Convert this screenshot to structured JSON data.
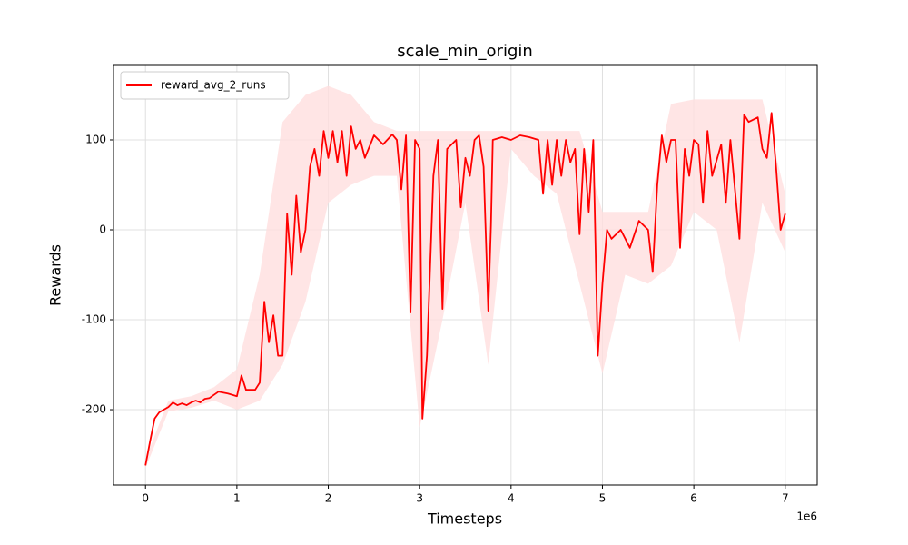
{
  "chart_data": {
    "type": "line",
    "title": "scale_min_origin",
    "x_label": "Timesteps",
    "y_label": "Rewards",
    "x_offset_label": "1e6",
    "x": [
      0,
      0.05,
      0.1,
      0.15,
      0.2,
      0.25,
      0.3,
      0.35,
      0.4,
      0.45,
      0.5,
      0.55,
      0.6,
      0.65,
      0.7,
      0.8,
      0.9,
      1.0,
      1.05,
      1.1,
      1.2,
      1.25,
      1.3,
      1.35,
      1.4,
      1.45,
      1.5,
      1.55,
      1.6,
      1.65,
      1.7,
      1.75,
      1.8,
      1.85,
      1.9,
      1.95,
      2.0,
      2.05,
      2.1,
      2.15,
      2.2,
      2.25,
      2.3,
      2.35,
      2.4,
      2.5,
      2.6,
      2.7,
      2.75,
      2.8,
      2.85,
      2.9,
      2.95,
      3.0,
      3.03,
      3.08,
      3.15,
      3.2,
      3.25,
      3.3,
      3.4,
      3.45,
      3.5,
      3.55,
      3.6,
      3.65,
      3.7,
      3.75,
      3.78,
      3.8,
      3.9,
      4.0,
      4.1,
      4.2,
      4.3,
      4.35,
      4.4,
      4.45,
      4.5,
      4.55,
      4.6,
      4.65,
      4.7,
      4.75,
      4.8,
      4.85,
      4.9,
      4.95,
      5.0,
      5.05,
      5.1,
      5.2,
      5.3,
      5.4,
      5.5,
      5.55,
      5.6,
      5.65,
      5.7,
      5.75,
      5.8,
      5.85,
      5.9,
      5.95,
      6.0,
      6.05,
      6.1,
      6.15,
      6.2,
      6.3,
      6.35,
      6.4,
      6.5,
      6.55,
      6.6,
      6.7,
      6.75,
      6.8,
      6.85,
      6.9,
      6.95,
      7.0
    ],
    "series": [
      {
        "name": "reward_avg_2_runs",
        "color": "#ff0000",
        "values": [
          -262,
          -235,
          -210,
          -203,
          -200,
          -197,
          -192,
          -195,
          -193,
          -195,
          -192,
          -190,
          -192,
          -188,
          -187,
          -180,
          -182,
          -185,
          -162,
          -178,
          -178,
          -170,
          -80,
          -125,
          -95,
          -140,
          -140,
          18,
          -50,
          38,
          -25,
          0,
          70,
          90,
          60,
          110,
          80,
          110,
          75,
          110,
          60,
          115,
          90,
          100,
          80,
          105,
          95,
          106,
          100,
          45,
          105,
          -92,
          100,
          90,
          -210,
          -140,
          60,
          100,
          -88,
          90,
          100,
          25,
          80,
          60,
          100,
          105,
          70,
          -90,
          5,
          100,
          103,
          100,
          105,
          103,
          100,
          40,
          100,
          50,
          100,
          60,
          100,
          75,
          90,
          -5,
          90,
          20,
          100,
          -140,
          -60,
          0,
          -10,
          0,
          -20,
          10,
          0,
          -47,
          50,
          105,
          75,
          100,
          100,
          -20,
          90,
          60,
          100,
          95,
          30,
          110,
          60,
          95,
          30,
          100,
          -10,
          128,
          120,
          125,
          90,
          80,
          130,
          70,
          0,
          18
        ]
      }
    ],
    "band": {
      "color": "#ffdede",
      "x": [
        0,
        0.25,
        0.5,
        0.75,
        1,
        1.25,
        1.5,
        1.75,
        2,
        2.25,
        2.5,
        2.75,
        3,
        3.25,
        3.5,
        3.75,
        4,
        4.25,
        4.5,
        4.75,
        5,
        5.25,
        5.5,
        5.75,
        6,
        6.25,
        6.5,
        6.75,
        7
      ],
      "lower": [
        -265,
        -202,
        -198,
        -190,
        -200,
        -190,
        -150,
        -80,
        30,
        50,
        60,
        60,
        -220,
        -100,
        30,
        -150,
        90,
        60,
        40,
        -60,
        -160,
        -50,
        -60,
        -40,
        20,
        0,
        -125,
        30,
        -25
      ],
      "upper": [
        -255,
        -190,
        -185,
        -175,
        -155,
        -50,
        120,
        150,
        160,
        150,
        120,
        110,
        110,
        110,
        110,
        110,
        110,
        110,
        110,
        110,
        20,
        20,
        20,
        140,
        145,
        145,
        145,
        145,
        40
      ]
    },
    "xlim": [
      -0.35,
      7.35
    ],
    "ylim": [
      -283.8,
      182.8
    ],
    "xticks": [
      0,
      1,
      2,
      3,
      4,
      5,
      6,
      7
    ],
    "yticks": [
      -200,
      -100,
      0,
      100
    ],
    "grid": true,
    "legend": "upper left"
  }
}
